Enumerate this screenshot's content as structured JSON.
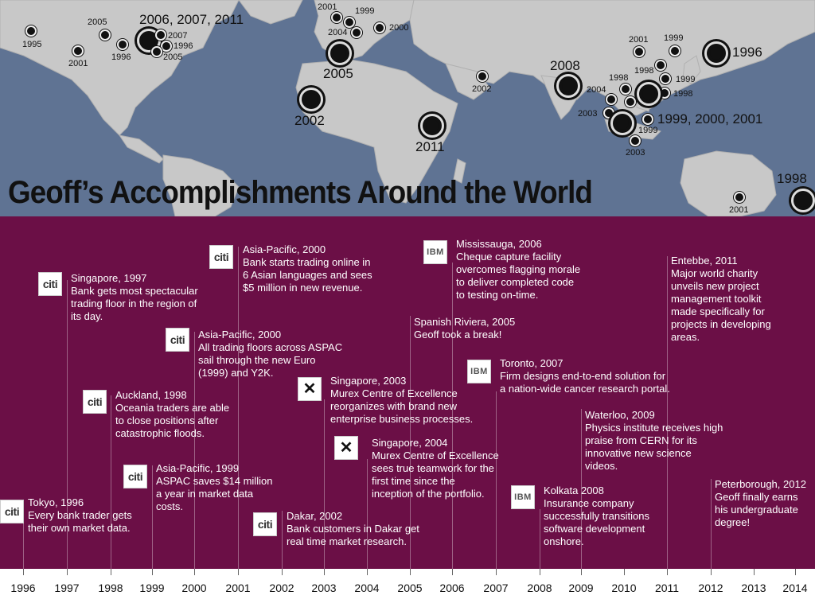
{
  "title": "Geoff’s Accomplishments Around the World",
  "map_markers": [
    {
      "label": "1995",
      "size": "small"
    },
    {
      "label": "2005",
      "size": "small"
    },
    {
      "label": "2001",
      "size": "small"
    },
    {
      "label": "1996",
      "size": "small"
    },
    {
      "label": "2006, 2007, 2011",
      "size": "large"
    },
    {
      "label": "2007",
      "size": "small"
    },
    {
      "label": "1996",
      "size": "small"
    },
    {
      "label": "2005",
      "size": "small"
    },
    {
      "label": "2001",
      "size": "small"
    },
    {
      "label": "1999",
      "size": "small"
    },
    {
      "label": "2004",
      "size": "small"
    },
    {
      "label": "2000",
      "size": "small"
    },
    {
      "label": "2005",
      "size": "large"
    },
    {
      "label": "2002",
      "size": "large"
    },
    {
      "label": "2011",
      "size": "large"
    },
    {
      "label": "2002",
      "size": "small"
    },
    {
      "label": "2008",
      "size": "large"
    },
    {
      "label": "2001",
      "size": "small"
    },
    {
      "label": "1999",
      "size": "small"
    },
    {
      "label": "1996",
      "size": "large"
    },
    {
      "label": "1998",
      "size": "small"
    },
    {
      "label": "1998",
      "size": "small"
    },
    {
      "label": "1999",
      "size": "small"
    },
    {
      "label": "2004",
      "size": "small"
    },
    {
      "label": "1998",
      "size": "small"
    },
    {
      "label": "2003",
      "size": "small"
    },
    {
      "label": "1999, 2000, 2001",
      "size": "large"
    },
    {
      "label": "1999",
      "size": "small"
    },
    {
      "label": "2003",
      "size": "small"
    },
    {
      "label": "1998",
      "size": "large"
    },
    {
      "label": "2001",
      "size": "small"
    }
  ],
  "events": [
    {
      "logo": "citi",
      "logo_text": "citi",
      "lines": [
        "Tokyo, 1996",
        "Every bank trader gets",
        "their own market data."
      ]
    },
    {
      "logo": "citi",
      "logo_text": "citi",
      "lines": [
        "Singapore, 1997",
        "Bank gets most spectacular",
        "trading floor in the region of",
        "its day."
      ]
    },
    {
      "logo": "citi",
      "logo_text": "citi",
      "lines": [
        "Auckland, 1998",
        "Oceania traders are able",
        "to close positions after",
        "catastrophic floods."
      ]
    },
    {
      "logo": "citi",
      "logo_text": "citi",
      "lines": [
        "Asia-Pacific, 1999",
        "ASPAC saves $14 million",
        "a year in market data",
        "costs."
      ]
    },
    {
      "logo": "citi",
      "logo_text": "citi",
      "lines": [
        "Asia-Pacific, 2000",
        "All trading floors across ASPAC",
        "sail through the new Euro",
        "(1999) and Y2K."
      ]
    },
    {
      "logo": "citi",
      "logo_text": "citi",
      "lines": [
        "Asia-Pacific, 2000",
        "Bank starts trading online in",
        "6 Asian languages and sees",
        "$5 million in new revenue."
      ]
    },
    {
      "logo": "citi",
      "logo_text": "citi",
      "lines": [
        "Dakar, 2002",
        "Bank customers in Dakar get",
        "real time market research."
      ]
    },
    {
      "logo": "murex",
      "logo_text": "✕",
      "lines": [
        "Singapore, 2003",
        "Murex Centre of Excellence",
        "reorganizes with brand new",
        "enterprise business processes."
      ]
    },
    {
      "logo": "murex",
      "logo_text": "✕",
      "lines": [
        "Singapore, 2004",
        "Murex Centre of Excellence",
        "sees true teamwork for the",
        "first time since the",
        "inception of the portfolio."
      ]
    },
    {
      "logo": "none",
      "logo_text": "",
      "lines": [
        "Spanish Riviera, 2005",
        "Geoff took a break!"
      ]
    },
    {
      "logo": "ibm",
      "logo_text": "IBM",
      "lines": [
        "Mississauga, 2006",
        "Cheque capture facility",
        "overcomes flagging morale",
        "to deliver completed code",
        "to testing on-time."
      ]
    },
    {
      "logo": "ibm",
      "logo_text": "IBM",
      "lines": [
        "Toronto, 2007",
        "Firm designs end-to-end solution for",
        "a nation-wide cancer research portal."
      ]
    },
    {
      "logo": "ibm",
      "logo_text": "IBM",
      "lines": [
        "Kolkata 2008",
        "Insurance company",
        "successfully transitions",
        "software development",
        "onshore."
      ]
    },
    {
      "logo": "none",
      "logo_text": "",
      "lines": [
        "Waterloo, 2009",
        "Physics institute receives high",
        "praise from CERN for its",
        "innovative new science",
        "videos."
      ]
    },
    {
      "logo": "none",
      "logo_text": "",
      "lines": [
        "Entebbe, 2011",
        "Major world charity",
        "unveils new project",
        "management toolkit",
        "made specifically for",
        "projects in developing",
        "areas."
      ]
    },
    {
      "logo": "none",
      "logo_text": "",
      "lines": [
        "Peterborough, 2012",
        "Geoff finally earns",
        "his undergraduate",
        "degree!"
      ]
    }
  ],
  "years": [
    "1996",
    "1997",
    "1998",
    "1999",
    "2000",
    "2001",
    "2002",
    "2003",
    "2004",
    "2005",
    "2006",
    "2007",
    "2008",
    "2009",
    "2010",
    "2011",
    "2012",
    "2013",
    "2014"
  ],
  "colors": {
    "map_ocean": "#5f7393",
    "map_land": "#c8c8c8",
    "panel": "#6b0f46",
    "text_on_panel": "#ffffff",
    "axis_bg": "#ffffff"
  }
}
